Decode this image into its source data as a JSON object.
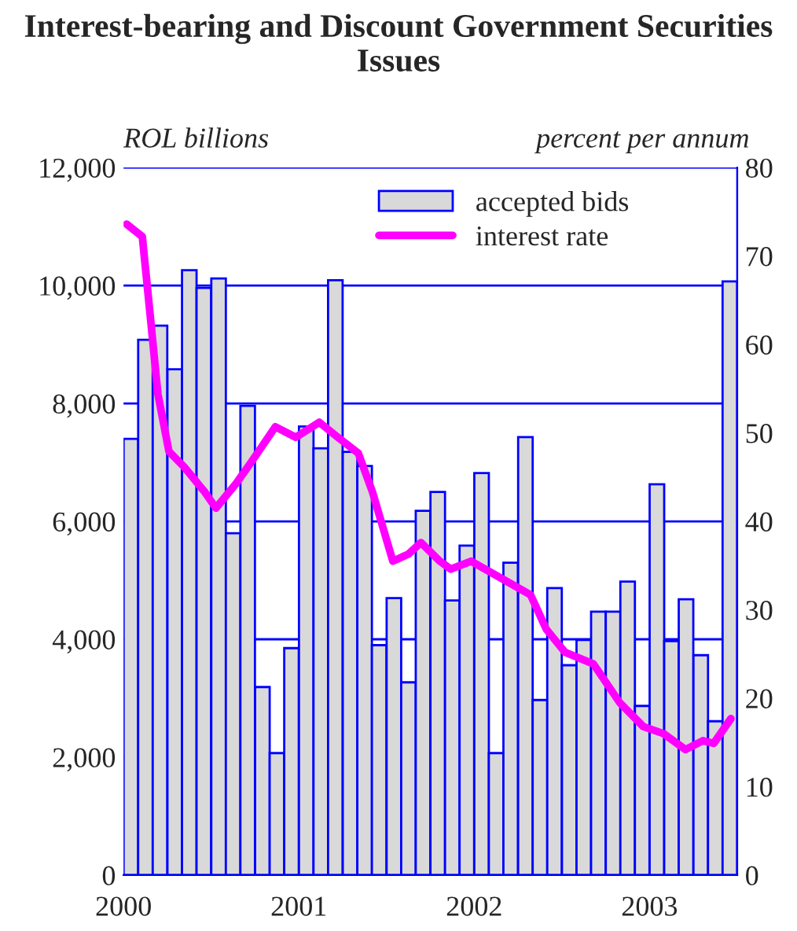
{
  "chart_data": {
    "type": "bar",
    "title": "Interest-bearing and Discount Government Securities Issues",
    "ylabel": "ROL billions",
    "y2label": "percent per annum",
    "xlim": [
      2000,
      2003.5
    ],
    "xticks": [
      2000,
      2001,
      2002,
      2003
    ],
    "ylim": [
      0,
      12000
    ],
    "yticks": [
      {
        "value": 0,
        "label": "0"
      },
      {
        "value": 2000,
        "label": "2,000"
      },
      {
        "value": 4000,
        "label": "4,000"
      },
      {
        "value": 6000,
        "label": "6,000"
      },
      {
        "value": 8000,
        "label": "8,000"
      },
      {
        "value": 10000,
        "label": "10,000"
      },
      {
        "value": 12000,
        "label": "12,000"
      }
    ],
    "y2lim": [
      0,
      80
    ],
    "y2ticks": [
      0,
      10,
      20,
      30,
      40,
      50,
      60,
      70,
      80
    ],
    "grid": "y",
    "legend": "top",
    "series": [
      {
        "name": "accepted bids",
        "color": "#d9d9d9",
        "x": [
          2000.042,
          2000.125,
          2000.208,
          2000.292,
          2000.375,
          2000.458,
          2000.542,
          2000.625,
          2000.708,
          2000.792,
          2000.875,
          2000.958,
          2001.042,
          2001.125,
          2001.208,
          2001.292,
          2001.375,
          2001.458,
          2001.542,
          2001.625,
          2001.708,
          2001.792,
          2001.875,
          2001.958,
          2002.042,
          2002.125,
          2002.208,
          2002.292,
          2002.375,
          2002.458,
          2002.542,
          2002.625,
          2002.708,
          2002.792,
          2002.875,
          2002.958,
          2003.042,
          2003.125,
          2003.208,
          2003.292,
          2003.375,
          2003.458
        ],
        "values": [
          7400,
          9080,
          9320,
          8580,
          10260,
          9960,
          10120,
          5800,
          7960,
          3190,
          2070,
          3850,
          7610,
          7240,
          10090,
          7180,
          6940,
          3900,
          4700,
          3270,
          6180,
          6500,
          4660,
          5590,
          6820,
          2070,
          5300,
          7430,
          2970,
          4870,
          3560,
          3990,
          4470,
          4470,
          4980,
          2870,
          6630,
          3970,
          4680,
          3730,
          2610,
          10070
        ]
      },
      {
        "name": "interest rate",
        "type": "line",
        "axis": "y2",
        "color": "#ff00ff",
        "x": [
          2000.018,
          2000.107,
          2000.152,
          2000.196,
          2000.259,
          2000.348,
          2000.464,
          2000.527,
          2000.643,
          2000.732,
          2000.866,
          2000.982,
          2001.116,
          2001.223,
          2001.339,
          2001.42,
          2001.536,
          2001.625,
          2001.696,
          2001.804,
          2001.866,
          2001.982,
          2002.161,
          2002.321,
          2002.411,
          2002.518,
          2002.679,
          2002.83,
          2002.964,
          2003.08,
          2003.205,
          2003.304,
          2003.366,
          2003.464
        ],
        "values": [
          73.6,
          72.2,
          63.3,
          54.4,
          47.9,
          46.1,
          43.3,
          41.5,
          44.3,
          46.8,
          50.7,
          49.5,
          51.2,
          49.5,
          47.7,
          43.3,
          35.5,
          36.3,
          37.6,
          35.5,
          34.6,
          35.5,
          33.5,
          31.7,
          27.8,
          25.2,
          23.9,
          19.5,
          16.8,
          16.0,
          14.2,
          15.2,
          14.9,
          17.7
        ]
      }
    ]
  }
}
